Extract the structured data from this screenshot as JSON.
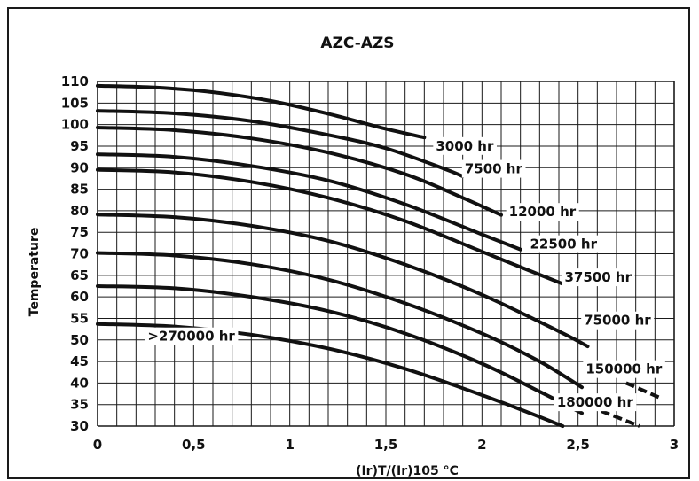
{
  "chart_data": {
    "type": "line",
    "title": "AZC-AZS",
    "xlabel": "(Ir)T/(Ir)105 °C",
    "ylabel": "Temperature",
    "xlim": [
      0,
      3
    ],
    "ylim": [
      30,
      110
    ],
    "x_ticks": [
      "0",
      "0,5",
      "1",
      "1,5",
      "2",
      "2,5",
      "3"
    ],
    "y_ticks": [
      "30",
      "35",
      "40",
      "45",
      "50",
      "55",
      "60",
      "65",
      "70",
      "75",
      "80",
      "85",
      "90",
      "95",
      "100",
      "105",
      "110"
    ],
    "grid": true,
    "colors": {
      "line": "#111111",
      "grid": "#1a1a1a",
      "label_bg": "#ffffff"
    },
    "series": [
      {
        "name": "3000 hr",
        "x": [
          0,
          0.3,
          0.6,
          0.9,
          1.2,
          1.5,
          1.7
        ],
        "y": [
          109,
          108.6,
          107.5,
          105.5,
          102.5,
          99,
          97
        ]
      },
      {
        "name": "7500 hr",
        "x": [
          0,
          0.4,
          0.8,
          1.2,
          1.5,
          1.8,
          1.9
        ],
        "y": [
          103.2,
          102.6,
          100.8,
          97.6,
          94.5,
          89.8,
          88
        ]
      },
      {
        "name": "12000 hr",
        "x": [
          0,
          0.4,
          0.8,
          1.2,
          1.6,
          1.9,
          2.1
        ],
        "y": [
          99.3,
          98.7,
          96.8,
          93.5,
          88.5,
          83,
          79
        ]
      },
      {
        "name": "22500 hr",
        "x": [
          0,
          0.4,
          0.8,
          1.2,
          1.6,
          2.0,
          2.2
        ],
        "y": [
          93.1,
          92.5,
          90.4,
          87,
          81.5,
          74.5,
          71
        ]
      },
      {
        "name": "37500 hr",
        "x": [
          0,
          0.4,
          0.8,
          1.2,
          1.6,
          2.0,
          2.42
        ],
        "y": [
          89.5,
          88.9,
          86.7,
          83,
          77.6,
          70.5,
          63
        ]
      },
      {
        "name": "75000 hr",
        "x": [
          0,
          0.4,
          0.8,
          1.2,
          1.6,
          2.0,
          2.4,
          2.55
        ],
        "y": [
          79.1,
          78.5,
          76.5,
          73,
          67.5,
          60.5,
          52,
          48.5
        ]
      },
      {
        "name": "150000 hr",
        "x": [
          0,
          0.4,
          0.8,
          1.2,
          1.6,
          2.0,
          2.3,
          2.52
        ],
        "y": [
          70.2,
          69.6,
          67.6,
          64,
          58.5,
          51.5,
          45,
          39
        ]
      },
      {
        "name": "180000 hr",
        "x": [
          0,
          0.4,
          0.8,
          1.2,
          1.6,
          2.0,
          2.3,
          2.52
        ],
        "y": [
          62.5,
          62,
          60,
          56.7,
          51.5,
          44.5,
          38,
          33
        ]
      },
      {
        "name": ">270000 hr",
        "x": [
          0,
          0.4,
          0.8,
          1.2,
          1.6,
          2.0,
          2.25,
          2.42
        ],
        "y": [
          53.7,
          53.1,
          51.2,
          48,
          43.3,
          37.2,
          33,
          30
        ]
      }
    ],
    "extra_dashed_segments": [
      {
        "x": [
          2.75,
          2.93
        ],
        "y": [
          40,
          36.5
        ]
      },
      {
        "x": [
          2.62,
          2.82
        ],
        "y": [
          33.5,
          30
        ]
      }
    ],
    "curve_labels": [
      {
        "text": "3000 hr",
        "x": 1.76,
        "y": 94
      },
      {
        "text": "7500 hr",
        "x": 1.91,
        "y": 88.7
      },
      {
        "text": "12000 hr",
        "x": 2.14,
        "y": 78.7
      },
      {
        "text": "22500 hr",
        "x": 2.25,
        "y": 71.2
      },
      {
        "text": "37500 hr",
        "x": 2.43,
        "y": 63.5
      },
      {
        "text": "75000 hr",
        "x": 2.53,
        "y": 53.5
      },
      {
        "text": "150000 hr",
        "x": 2.54,
        "y": 42.2
      },
      {
        "text": "180000 hr",
        "x": 2.39,
        "y": 34.5
      },
      {
        "text": ">270000 hr",
        "x": 0.26,
        "y": 49.8
      }
    ]
  }
}
